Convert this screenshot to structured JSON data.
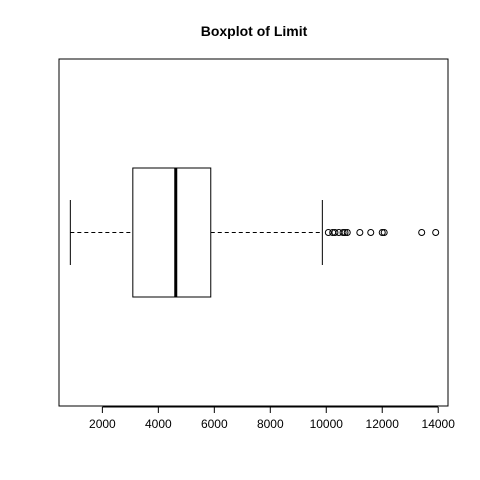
{
  "chart_data": {
    "type": "boxplot",
    "orientation": "horizontal",
    "title": "Boxplot of Limit",
    "xlabel": "",
    "ylabel": "",
    "xlim": [
      450,
      14350
    ],
    "xticks": [
      2000,
      4000,
      6000,
      8000,
      10000,
      12000,
      14000
    ],
    "xtick_labels": [
      "2000",
      "4000",
      "6000",
      "8000",
      "10000",
      "12000",
      "14000"
    ],
    "grid": false,
    "series": [
      {
        "whisker_low": 855,
        "q1": 3088,
        "median": 4622,
        "q3": 5873,
        "whisker_high": 9860,
        "outliers": [
          10075,
          10230,
          10310,
          10450,
          10600,
          10670,
          10750,
          11200,
          11590,
          12000,
          12070,
          13410,
          13910
        ]
      }
    ]
  }
}
